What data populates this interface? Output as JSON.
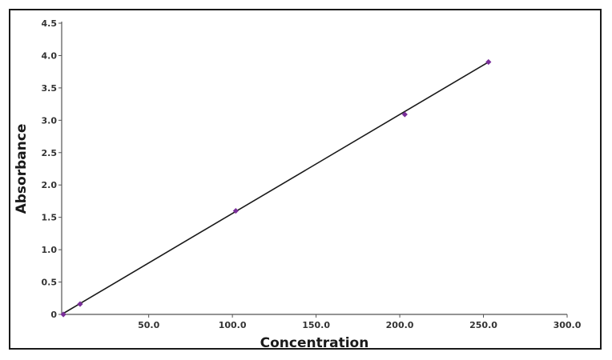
{
  "chart_data": {
    "type": "scatter",
    "title": "",
    "xlabel": "Concentration",
    "ylabel": "Absorbance",
    "xlim": [
      -2,
      300
    ],
    "ylim": [
      0,
      4.5
    ],
    "x_ticks": [
      {
        "value": 50,
        "label": "50.0"
      },
      {
        "value": 100,
        "label": "100.0"
      },
      {
        "value": 150,
        "label": "150.0"
      },
      {
        "value": 200,
        "label": "200.0"
      },
      {
        "value": 250,
        "label": "250.0"
      },
      {
        "value": 300,
        "label": "300.0"
      }
    ],
    "y_ticks": [
      {
        "value": 0,
        "label": "0"
      },
      {
        "value": 0.5,
        "label": "0.5"
      },
      {
        "value": 1.0,
        "label": "1.0"
      },
      {
        "value": 1.5,
        "label": "1.5"
      },
      {
        "value": 2.0,
        "label": "2.0"
      },
      {
        "value": 2.5,
        "label": "2.5"
      },
      {
        "value": 3.0,
        "label": "3.0"
      },
      {
        "value": 3.5,
        "label": "3.5"
      },
      {
        "value": 4.0,
        "label": "4.0"
      },
      {
        "value": 4.5,
        "label": "4.5"
      }
    ],
    "series": [
      {
        "x": [
          -1,
          9,
          102,
          203,
          253
        ],
        "y": [
          0.0,
          0.16,
          1.6,
          3.09,
          3.9
        ]
      }
    ],
    "trendline": {
      "x": [
        -2,
        253
      ],
      "y": [
        0.0,
        3.9
      ]
    },
    "grid": false,
    "colors": {
      "points": "#7a2e9a",
      "line": "#1a1a1a",
      "axis": "#555555",
      "frame": "#1a1a1a"
    }
  }
}
